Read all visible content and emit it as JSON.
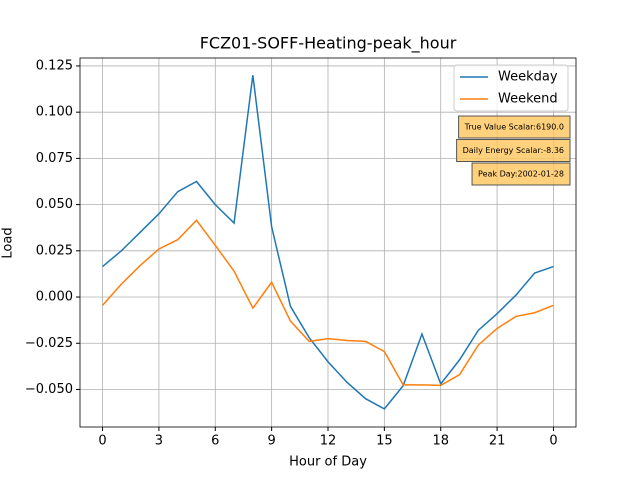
{
  "chart_data": {
    "type": "line",
    "title": "FCZ01-SOFF-Heating-peak_hour",
    "x_label": "Hour of Day",
    "y_label": "Load",
    "x": [
      0,
      1,
      2,
      3,
      4,
      5,
      6,
      7,
      8,
      9,
      10,
      11,
      12,
      13,
      14,
      15,
      16,
      17,
      18,
      19,
      20,
      21,
      22,
      23,
      24
    ],
    "series": [
      {
        "name": "Weekday",
        "color": "#1f77b4",
        "values": [
          0.0165,
          0.025,
          0.035,
          0.045,
          0.057,
          0.0625,
          0.05,
          0.04,
          0.12,
          0.038,
          -0.005,
          -0.022,
          -0.035,
          -0.046,
          -0.055,
          -0.0605,
          -0.048,
          -0.02,
          -0.047,
          -0.034,
          -0.018,
          -0.009,
          0.001,
          0.013,
          0.0165
        ]
      },
      {
        "name": "Weekend",
        "color": "#ff7f0e",
        "values": [
          -0.0045,
          0.007,
          0.017,
          0.026,
          0.031,
          0.0415,
          0.028,
          0.014,
          -0.006,
          0.008,
          -0.013,
          -0.024,
          -0.0225,
          -0.0235,
          -0.024,
          -0.0295,
          -0.0475,
          -0.0475,
          -0.0478,
          -0.042,
          -0.026,
          -0.017,
          -0.0105,
          -0.0085,
          -0.0045
        ]
      }
    ],
    "xlim": [
      -1.2,
      25.2
    ],
    "xticks": [
      0,
      3,
      6,
      9,
      12,
      15,
      18,
      21,
      {
        "value": 24,
        "label": "0"
      }
    ],
    "ylim": [
      -0.0703,
      0.1293
    ],
    "yticks": [
      {
        "value": -0.05,
        "label": "−0.050"
      },
      {
        "value": -0.025,
        "label": "−0.025"
      },
      {
        "value": 0,
        "label": "0.000"
      },
      {
        "value": 0.025,
        "label": "0.025"
      },
      {
        "value": 0.05,
        "label": "0.050"
      },
      {
        "value": 0.075,
        "label": "0.075"
      },
      {
        "value": 0.1,
        "label": "0.100"
      },
      {
        "value": 0.125,
        "label": "0.125"
      }
    ],
    "grid": true,
    "legend": "upper right",
    "annotations": [
      "True Value Scalar:6190.0",
      "Daily Energy Scalar:-8.36",
      "Peak Day:2002-01-28"
    ]
  }
}
